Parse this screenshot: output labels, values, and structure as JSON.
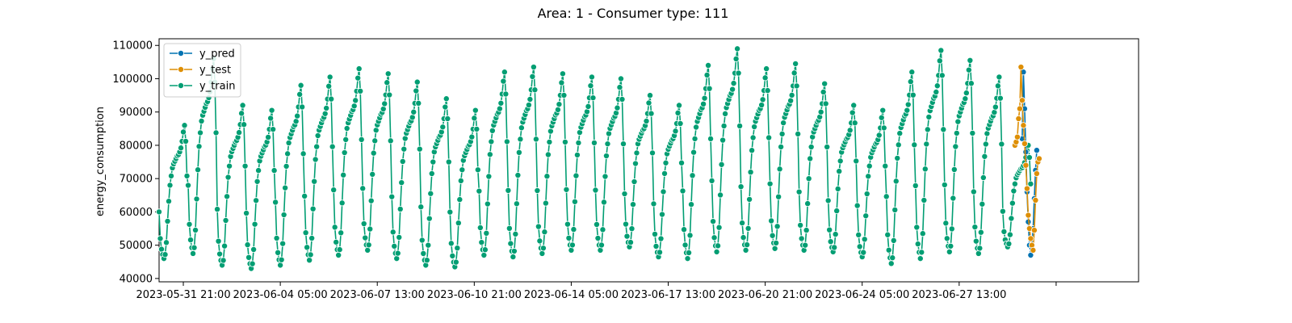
{
  "chart_data": {
    "type": "line",
    "title": "Area: 1 - Consumer type: 111",
    "xlabel": "",
    "ylabel": "energy_consumption",
    "ylim": [
      39000,
      112000
    ],
    "xlim": [
      "2023-05-31 01:00",
      "2023-07-03 17:00"
    ],
    "yticks": [
      40000,
      50000,
      60000,
      70000,
      80000,
      90000,
      100000,
      110000
    ],
    "xticks": [
      {
        "x": "2023-05-31 21:00",
        "label": "2023-05-31 21:00"
      },
      {
        "x": "2023-06-04 05:00",
        "label": "2023-06-04 05:00"
      },
      {
        "x": "2023-06-07 13:00",
        "label": "2023-06-07 13:00"
      },
      {
        "x": "2023-06-10 21:00",
        "label": "2023-06-10 21:00"
      },
      {
        "x": "2023-06-14 05:00",
        "label": "2023-06-14 05:00"
      },
      {
        "x": "2023-06-17 13:00",
        "label": "2023-06-17 13:00"
      },
      {
        "x": "2023-06-20 21:00",
        "label": "2023-06-20 21:00"
      },
      {
        "x": "2023-06-24 05:00",
        "label": "2023-06-24 05:00"
      },
      {
        "x": "2023-06-27 13:00",
        "label": "2023-06-27 13:00"
      },
      {
        "x": "2023-06-30 21:00",
        "label": ""
      }
    ],
    "grid": false,
    "legend_position": "top-left",
    "series": [
      {
        "name": "y_pred",
        "color": "#0173b2",
        "start": "2023-06-29 17:00",
        "step_hours": 1,
        "values": [
          82000,
          102000,
          91000,
          78000,
          66000,
          57000,
          50000,
          47000,
          49000,
          55000,
          64000,
          72500,
          78500
        ]
      },
      {
        "name": "y_test",
        "color": "#de8f05",
        "start": "2023-06-29 11:00",
        "step_hours": 1,
        "values": [
          80000,
          81000,
          82500,
          88000,
          91000,
          103500,
          93500,
          86000,
          80500,
          74000,
          67000,
          59000,
          55000,
          52000,
          50000,
          48500,
          54500,
          63500,
          71500,
          75000,
          76000
        ]
      },
      {
        "name": "y_train",
        "color": "#029e73",
        "start": "2023-05-31 01:00",
        "step_hours": 1,
        "day_min": [
          46000,
          47500,
          44000,
          43000,
          44000,
          45500,
          47000,
          48500,
          46000,
          44000,
          43500,
          47000,
          46500,
          47500,
          48500,
          48500,
          49500,
          46500,
          46000,
          48000,
          48500,
          49000,
          48500,
          48000,
          46500,
          44500,
          46000,
          48000,
          47500,
          49500
        ],
        "day_max": [
          86000,
          106000,
          92000,
          90500,
          98000,
          100500,
          103000,
          101500,
          99000,
          94000,
          90500,
          102000,
          103500,
          101500,
          100500,
          100000,
          95000,
          92000,
          104000,
          109000,
          103000,
          104500,
          98500,
          92000,
          90500,
          102000,
          108500,
          105500,
          100500,
          80000
        ],
        "values": []
      }
    ]
  }
}
